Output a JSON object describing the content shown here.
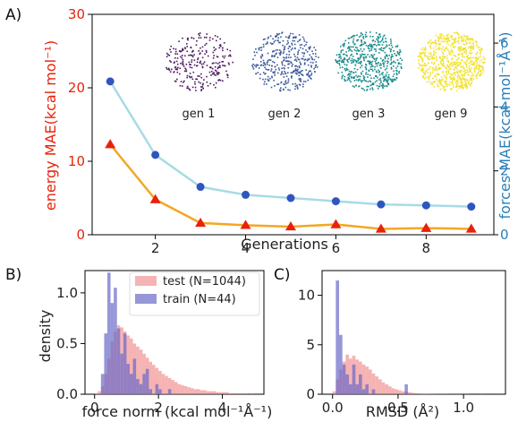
{
  "chart_data": [
    {
      "panel_label": "A)",
      "type": "line",
      "xlabel": "Generations",
      "ylabel": "energy MAE(kcal mol⁻¹)",
      "ylabel2": "forces MAE(kcal mol⁻¹Å⁻¹)",
      "x": [
        1,
        2,
        3,
        4,
        5,
        6,
        7,
        8,
        9
      ],
      "xlim": [
        0.6,
        9.5
      ],
      "ylim": [
        0,
        30
      ],
      "ylim2": [
        0,
        6.9
      ],
      "xticks": [
        2,
        4,
        6,
        8
      ],
      "yticks": [
        0,
        10,
        20,
        30
      ],
      "yticks2": [
        0,
        2,
        4,
        6
      ],
      "series": [
        {
          "axis": "left",
          "color": "#f5a623",
          "marker": "triangle",
          "marker_color": "#e8210a",
          "values": [
            12.3,
            4.8,
            1.6,
            1.3,
            1.1,
            1.4,
            0.8,
            0.9,
            0.8
          ]
        },
        {
          "axis": "right",
          "color": "#a6dbe6",
          "marker": "circle",
          "marker_color": "#2f55c0",
          "values": [
            4.8,
            2.5,
            1.5,
            1.25,
            1.15,
            1.05,
            0.95,
            0.92,
            0.88
          ]
        }
      ],
      "insets": [
        {
          "label": "gen 1",
          "color": "#4b1a5e"
        },
        {
          "label": "gen 2",
          "color": "#3b5998"
        },
        {
          "label": "gen 3",
          "color": "#1a8a8a"
        },
        {
          "label": "gen 9",
          "color": "#f2e22a"
        }
      ]
    },
    {
      "panel_label": "B)",
      "type": "bar",
      "xlabel": "force norm (kcal mol⁻¹Å⁻¹)",
      "ylabel": "density",
      "xlim": [
        -0.3,
        5.3
      ],
      "ylim": [
        0,
        1.22
      ],
      "xticks": [
        0,
        2,
        4
      ],
      "yticks": [
        0.0,
        0.5,
        1.0
      ],
      "bin_start": 0.0,
      "bin_width": 0.1,
      "series": [
        {
          "name": "test (N=1044)",
          "color": "#f08080",
          "values": [
            0.01,
            0.03,
            0.08,
            0.2,
            0.35,
            0.52,
            0.62,
            0.68,
            0.66,
            0.62,
            0.58,
            0.55,
            0.5,
            0.47,
            0.44,
            0.4,
            0.36,
            0.32,
            0.29,
            0.26,
            0.23,
            0.2,
            0.18,
            0.16,
            0.14,
            0.12,
            0.1,
            0.09,
            0.08,
            0.07,
            0.06,
            0.05,
            0.05,
            0.04,
            0.04,
            0.03,
            0.03,
            0.03,
            0.02,
            0.02,
            0.02,
            0.02,
            0.01,
            0.01,
            0.01,
            0.01,
            0.01,
            0.01,
            0.0,
            0.01
          ]
        },
        {
          "name": "train (N=44)",
          "color": "#6a6ac8",
          "values": [
            0.0,
            0.0,
            0.2,
            0.6,
            1.2,
            0.9,
            1.05,
            0.65,
            0.4,
            0.6,
            0.3,
            0.2,
            0.35,
            0.15,
            0.1,
            0.2,
            0.25,
            0.05,
            0.0,
            0.1,
            0.05,
            0.0,
            0.0,
            0.05,
            0.0,
            0.0,
            0.0,
            0.0,
            0.0,
            0.0,
            0.0,
            0.0,
            0.0,
            0.0,
            0.0,
            0.0,
            0.0,
            0.0,
            0.0,
            0.0,
            0.0,
            0.0,
            0.0,
            0.0,
            0.0,
            0.0,
            0.0,
            0.0,
            0.0,
            0.0
          ]
        }
      ]
    },
    {
      "panel_label": "C)",
      "type": "bar",
      "xlabel": "RMSD (Å²)",
      "ylabel": "",
      "xlim": [
        -0.08,
        1.32
      ],
      "ylim": [
        0,
        12.5
      ],
      "xticks": [
        0.0,
        0.5,
        1.0
      ],
      "yticks": [
        0,
        5,
        10
      ],
      "bin_start": 0.0,
      "bin_width": 0.025,
      "series": [
        {
          "name": "test",
          "color": "#f08080",
          "values": [
            0.3,
            1.5,
            2.5,
            3.3,
            4.0,
            3.6,
            3.9,
            3.5,
            3.3,
            3.0,
            2.8,
            2.5,
            2.1,
            1.8,
            1.5,
            1.2,
            1.0,
            0.8,
            0.6,
            0.5,
            0.4,
            0.3,
            0.25,
            0.2,
            0.15,
            0.1,
            0.08,
            0.06,
            0.05,
            0.04,
            0.03,
            0.03,
            0.02,
            0.02,
            0.02,
            0.01,
            0.01,
            0.01,
            0.01,
            0.01,
            0.01,
            0.01,
            0.0,
            0.0,
            0.0,
            0.01
          ]
        },
        {
          "name": "train",
          "color": "#6a6ac8",
          "values": [
            0.0,
            11.5,
            6.0,
            3.0,
            2.0,
            1.0,
            3.0,
            1.0,
            2.0,
            0.5,
            1.0,
            0.0,
            0.5,
            0.0,
            0.0,
            0.0,
            0.0,
            0.0,
            0.0,
            0.0,
            0.0,
            0.0,
            1.0,
            0.0,
            0.0,
            0.0,
            0.0,
            0.0,
            0.0,
            0.0,
            0.0,
            0.0,
            0.0,
            0.0,
            0.0,
            0.0,
            0.0,
            0.0,
            0.0,
            0.0,
            0.0,
            0.0,
            0.0,
            0.0,
            0.0,
            0.0
          ]
        }
      ]
    }
  ]
}
